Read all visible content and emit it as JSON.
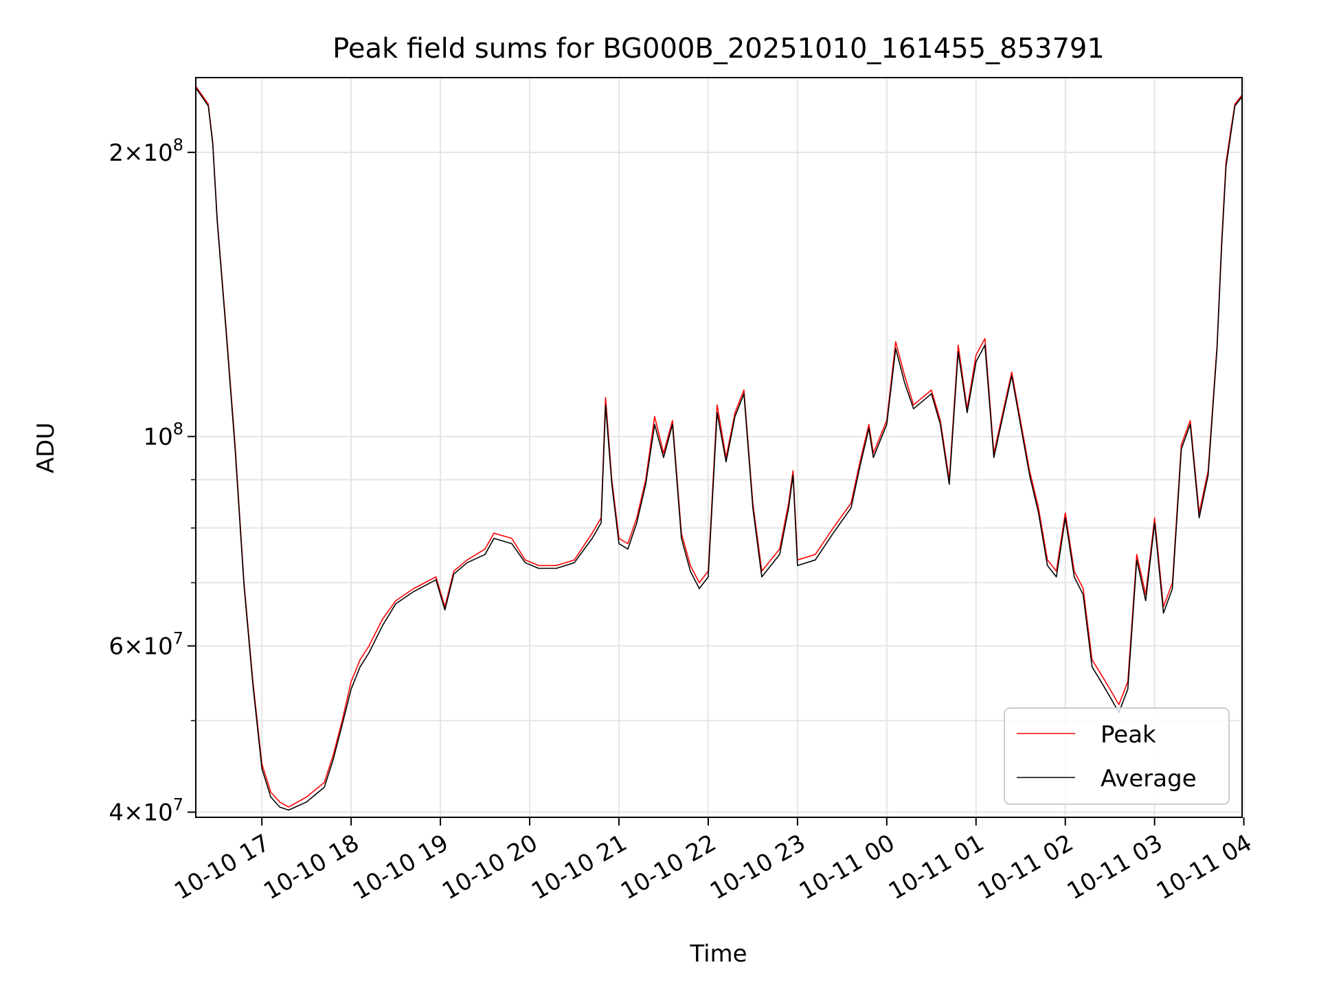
{
  "chart_data": {
    "type": "line",
    "title": "Peak field sums for BG000B_20251010_161455_853791",
    "xlabel": "Time",
    "ylabel": "ADU",
    "yscale": "log",
    "xlim_hours": [
      16.26,
      27.98
    ],
    "ylim": [
      39500000,
      240000000
    ],
    "x_ticks": [
      {
        "hour": 17,
        "label": "10-10 17"
      },
      {
        "hour": 18,
        "label": "10-10 18"
      },
      {
        "hour": 19,
        "label": "10-10 19"
      },
      {
        "hour": 20,
        "label": "10-10 20"
      },
      {
        "hour": 21,
        "label": "10-10 21"
      },
      {
        "hour": 22,
        "label": "10-10 22"
      },
      {
        "hour": 23,
        "label": "10-10 23"
      },
      {
        "hour": 24,
        "label": "10-11 00"
      },
      {
        "hour": 25,
        "label": "10-11 01"
      },
      {
        "hour": 26,
        "label": "10-11 02"
      },
      {
        "hour": 27,
        "label": "10-11 03"
      },
      {
        "hour": 28,
        "label": "10-11 04"
      }
    ],
    "y_major_ticks": [
      {
        "value": 40000000,
        "mantissa": "4",
        "exp": "7"
      },
      {
        "value": 60000000,
        "mantissa": "6",
        "exp": "7"
      },
      {
        "value": 100000000,
        "mantissa": "",
        "exp": "8"
      },
      {
        "value": 200000000,
        "mantissa": "2",
        "exp": "8"
      }
    ],
    "y_minor_ticks": [
      50000000,
      70000000,
      80000000,
      90000000
    ],
    "grid": true,
    "legend_position": "lower-right",
    "colors": {
      "peak": "#ff0000",
      "average": "#000000",
      "grid": "#e5e5e5"
    },
    "series": [
      {
        "name": "Peak",
        "color": "#ff0000",
        "points": [
          [
            16.26,
            235000000
          ],
          [
            16.4,
            225000000
          ],
          [
            16.45,
            205000000
          ],
          [
            16.5,
            170000000
          ],
          [
            16.6,
            130000000
          ],
          [
            16.7,
            98000000
          ],
          [
            16.8,
            70000000
          ],
          [
            16.9,
            55000000
          ],
          [
            17.0,
            45000000
          ],
          [
            17.1,
            42000000
          ],
          [
            17.2,
            41000000
          ],
          [
            17.3,
            40500000
          ],
          [
            17.5,
            41500000
          ],
          [
            17.7,
            43000000
          ],
          [
            17.8,
            46000000
          ],
          [
            17.9,
            50000000
          ],
          [
            18.0,
            55000000
          ],
          [
            18.1,
            58000000
          ],
          [
            18.2,
            60000000
          ],
          [
            18.35,
            64000000
          ],
          [
            18.5,
            67000000
          ],
          [
            18.7,
            69000000
          ],
          [
            18.95,
            71000000
          ],
          [
            19.05,
            66000000
          ],
          [
            19.15,
            72000000
          ],
          [
            19.3,
            74000000
          ],
          [
            19.5,
            76000000
          ],
          [
            19.6,
            79000000
          ],
          [
            19.8,
            78000000
          ],
          [
            19.95,
            74000000
          ],
          [
            20.1,
            73000000
          ],
          [
            20.3,
            73000000
          ],
          [
            20.5,
            74000000
          ],
          [
            20.7,
            79000000
          ],
          [
            20.8,
            82000000
          ],
          [
            20.85,
            110000000
          ],
          [
            20.92,
            90000000
          ],
          [
            21.0,
            78000000
          ],
          [
            21.1,
            77000000
          ],
          [
            21.2,
            82000000
          ],
          [
            21.3,
            90000000
          ],
          [
            21.4,
            105000000
          ],
          [
            21.5,
            96000000
          ],
          [
            21.6,
            104000000
          ],
          [
            21.7,
            79000000
          ],
          [
            21.8,
            73000000
          ],
          [
            21.9,
            70000000
          ],
          [
            22.0,
            72000000
          ],
          [
            22.1,
            108000000
          ],
          [
            22.2,
            95000000
          ],
          [
            22.3,
            106000000
          ],
          [
            22.4,
            112000000
          ],
          [
            22.5,
            85000000
          ],
          [
            22.6,
            72000000
          ],
          [
            22.8,
            76000000
          ],
          [
            22.9,
            85000000
          ],
          [
            22.95,
            92000000
          ],
          [
            23.0,
            74000000
          ],
          [
            23.2,
            75000000
          ],
          [
            23.4,
            80000000
          ],
          [
            23.6,
            85000000
          ],
          [
            23.7,
            94000000
          ],
          [
            23.8,
            103000000
          ],
          [
            23.85,
            96000000
          ],
          [
            24.0,
            104000000
          ],
          [
            24.1,
            126000000
          ],
          [
            24.2,
            116000000
          ],
          [
            24.3,
            108000000
          ],
          [
            24.5,
            112000000
          ],
          [
            24.6,
            104000000
          ],
          [
            24.7,
            90000000
          ],
          [
            24.8,
            125000000
          ],
          [
            24.9,
            107000000
          ],
          [
            25.0,
            122000000
          ],
          [
            25.1,
            127000000
          ],
          [
            25.2,
            96000000
          ],
          [
            25.4,
            117000000
          ],
          [
            25.6,
            92000000
          ],
          [
            25.7,
            84000000
          ],
          [
            25.8,
            74000000
          ],
          [
            25.9,
            72000000
          ],
          [
            26.0,
            83000000
          ],
          [
            26.1,
            72000000
          ],
          [
            26.2,
            69000000
          ],
          [
            26.3,
            58000000
          ],
          [
            26.4,
            56000000
          ],
          [
            26.5,
            54000000
          ],
          [
            26.6,
            52000000
          ],
          [
            26.7,
            55000000
          ],
          [
            26.8,
            75000000
          ],
          [
            26.9,
            68000000
          ],
          [
            27.0,
            82000000
          ],
          [
            27.1,
            66000000
          ],
          [
            27.2,
            70000000
          ],
          [
            27.3,
            98000000
          ],
          [
            27.4,
            104000000
          ],
          [
            27.5,
            83000000
          ],
          [
            27.6,
            92000000
          ],
          [
            27.7,
            125000000
          ],
          [
            27.75,
            160000000
          ],
          [
            27.8,
            195000000
          ],
          [
            27.85,
            210000000
          ],
          [
            27.9,
            225000000
          ],
          [
            27.98,
            230000000
          ]
        ]
      },
      {
        "name": "Average",
        "color": "#000000",
        "points": [
          [
            16.26,
            234000000
          ],
          [
            16.4,
            224000000
          ],
          [
            16.45,
            204000000
          ],
          [
            16.5,
            169000000
          ],
          [
            16.6,
            129000000
          ],
          [
            16.7,
            97000000
          ],
          [
            16.8,
            69500000
          ],
          [
            16.9,
            54500000
          ],
          [
            17.0,
            44500000
          ],
          [
            17.1,
            41500000
          ],
          [
            17.2,
            40500000
          ],
          [
            17.3,
            40200000
          ],
          [
            17.5,
            41000000
          ],
          [
            17.7,
            42500000
          ],
          [
            17.8,
            45500000
          ],
          [
            17.9,
            49500000
          ],
          [
            18.0,
            54000000
          ],
          [
            18.1,
            57000000
          ],
          [
            18.2,
            59000000
          ],
          [
            18.35,
            63000000
          ],
          [
            18.5,
            66500000
          ],
          [
            18.7,
            68500000
          ],
          [
            18.95,
            70500000
          ],
          [
            19.05,
            65500000
          ],
          [
            19.15,
            71500000
          ],
          [
            19.3,
            73500000
          ],
          [
            19.5,
            75000000
          ],
          [
            19.6,
            78000000
          ],
          [
            19.8,
            77000000
          ],
          [
            19.95,
            73500000
          ],
          [
            20.1,
            72500000
          ],
          [
            20.3,
            72500000
          ],
          [
            20.5,
            73500000
          ],
          [
            20.7,
            78000000
          ],
          [
            20.8,
            81000000
          ],
          [
            20.85,
            108000000
          ],
          [
            20.92,
            89000000
          ],
          [
            21.0,
            77000000
          ],
          [
            21.1,
            76000000
          ],
          [
            21.2,
            81000000
          ],
          [
            21.3,
            89000000
          ],
          [
            21.4,
            103000000
          ],
          [
            21.5,
            95000000
          ],
          [
            21.6,
            103000000
          ],
          [
            21.7,
            78000000
          ],
          [
            21.8,
            72000000
          ],
          [
            21.9,
            69000000
          ],
          [
            22.0,
            71000000
          ],
          [
            22.1,
            106000000
          ],
          [
            22.2,
            94000000
          ],
          [
            22.3,
            105000000
          ],
          [
            22.4,
            111000000
          ],
          [
            22.5,
            84000000
          ],
          [
            22.6,
            71000000
          ],
          [
            22.8,
            75000000
          ],
          [
            22.9,
            84000000
          ],
          [
            22.95,
            91000000
          ],
          [
            23.0,
            73000000
          ],
          [
            23.2,
            74000000
          ],
          [
            23.4,
            79000000
          ],
          [
            23.6,
            84000000
          ],
          [
            23.7,
            93000000
          ],
          [
            23.8,
            102000000
          ],
          [
            23.85,
            95000000
          ],
          [
            24.0,
            103000000
          ],
          [
            24.1,
            124000000
          ],
          [
            24.2,
            114000000
          ],
          [
            24.3,
            107000000
          ],
          [
            24.5,
            111000000
          ],
          [
            24.6,
            103000000
          ],
          [
            24.7,
            89000000
          ],
          [
            24.8,
            123000000
          ],
          [
            24.9,
            106000000
          ],
          [
            25.0,
            120000000
          ],
          [
            25.1,
            125000000
          ],
          [
            25.2,
            95000000
          ],
          [
            25.4,
            116000000
          ],
          [
            25.6,
            91000000
          ],
          [
            25.7,
            83000000
          ],
          [
            25.8,
            73000000
          ],
          [
            25.9,
            71000000
          ],
          [
            26.0,
            82000000
          ],
          [
            26.1,
            71000000
          ],
          [
            26.2,
            68000000
          ],
          [
            26.3,
            57000000
          ],
          [
            26.4,
            55000000
          ],
          [
            26.5,
            53000000
          ],
          [
            26.6,
            51000000
          ],
          [
            26.7,
            54000000
          ],
          [
            26.8,
            74000000
          ],
          [
            26.9,
            67000000
          ],
          [
            27.0,
            81000000
          ],
          [
            27.1,
            65000000
          ],
          [
            27.2,
            69000000
          ],
          [
            27.3,
            97000000
          ],
          [
            27.4,
            103000000
          ],
          [
            27.5,
            82000000
          ],
          [
            27.6,
            91000000
          ],
          [
            27.7,
            124000000
          ],
          [
            27.75,
            158000000
          ],
          [
            27.8,
            193000000
          ],
          [
            27.85,
            208000000
          ],
          [
            27.9,
            224000000
          ],
          [
            27.98,
            229000000
          ]
        ]
      }
    ]
  }
}
